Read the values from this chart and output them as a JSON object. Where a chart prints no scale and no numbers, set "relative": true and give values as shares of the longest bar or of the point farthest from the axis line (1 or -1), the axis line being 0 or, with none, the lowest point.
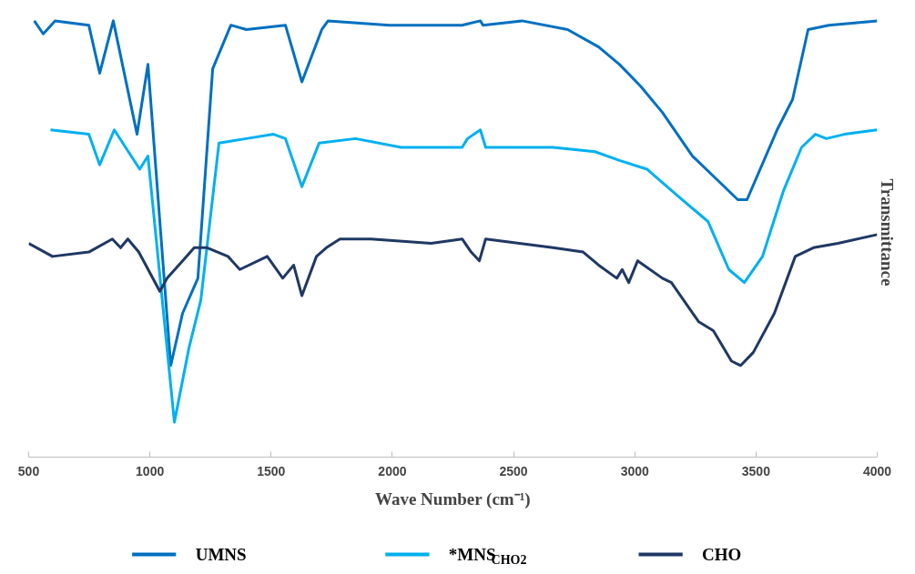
{
  "chart_data": {
    "type": "line",
    "relative": true,
    "xlabel": "Wave Number (cm⁻¹)",
    "ylabel": "Transmittance",
    "xlim": [
      500,
      4000
    ],
    "xticks": [
      500,
      1000,
      1500,
      2000,
      2500,
      3000,
      3500,
      4000
    ],
    "grid": false,
    "legend": "bottom",
    "marker": "none",
    "line_style": "solid",
    "series": [
      {
        "name": "UMNS",
        "color": "#0070c0",
        "x": [
          523,
          560,
          609,
          748,
          793,
          849,
          947,
          992,
          1086,
          1135,
          1198,
          1259,
          1334,
          1398,
          1559,
          1627,
          1709,
          1735,
          1987,
          2288,
          2363,
          2374,
          2535,
          2723,
          2851,
          2937,
          3024,
          3114,
          3238,
          3313,
          3425,
          3463,
          3587,
          3651,
          3715,
          3801,
          4000
        ],
        "values": [
          1.0,
          0.97,
          1.0,
          0.99,
          0.88,
          1.0,
          0.74,
          0.9,
          0.21,
          0.33,
          0.41,
          0.89,
          0.99,
          0.98,
          0.99,
          0.86,
          0.98,
          1.0,
          0.99,
          0.99,
          1.0,
          0.99,
          1.0,
          0.98,
          0.94,
          0.9,
          0.85,
          0.79,
          0.69,
          0.65,
          0.59,
          0.59,
          0.75,
          0.82,
          0.98,
          0.99,
          1.0
        ]
      },
      {
        "name": "*MNS$_{CHO2}$",
        "color": "#00b0f0",
        "x": [
          590,
          748,
          793,
          853,
          958,
          992,
          1101,
          1161,
          1210,
          1285,
          1398,
          1510,
          1559,
          1627,
          1698,
          1848,
          2036,
          2288,
          2310,
          2363,
          2385,
          2663,
          2836,
          2937,
          3050,
          3174,
          3302,
          3388,
          3452,
          3527,
          3613,
          3688,
          3745,
          3790,
          3865,
          4000
        ],
        "values": [
          0.75,
          0.74,
          0.67,
          0.75,
          0.66,
          0.69,
          0.08,
          0.25,
          0.36,
          0.72,
          0.73,
          0.74,
          0.73,
          0.62,
          0.72,
          0.73,
          0.71,
          0.71,
          0.73,
          0.75,
          0.71,
          0.71,
          0.7,
          0.68,
          0.66,
          0.6,
          0.54,
          0.43,
          0.4,
          0.46,
          0.61,
          0.71,
          0.74,
          0.73,
          0.74,
          0.75
        ]
      },
      {
        "name": "CHO",
        "color": "#1f3864",
        "x": [
          500,
          598,
          748,
          845,
          879,
          909,
          954,
          1041,
          1071,
          1135,
          1183,
          1236,
          1322,
          1371,
          1484,
          1548,
          1593,
          1627,
          1687,
          1728,
          1784,
          1912,
          2160,
          2288,
          2325,
          2359,
          2385,
          2663,
          2787,
          2851,
          2926,
          2948,
          2975,
          3012,
          3114,
          3151,
          3264,
          3324,
          3399,
          3437,
          3489,
          3576,
          3662,
          3737,
          3838,
          4000
        ],
        "values": [
          0.49,
          0.46,
          0.47,
          0.5,
          0.48,
          0.5,
          0.47,
          0.38,
          0.41,
          0.45,
          0.48,
          0.48,
          0.46,
          0.43,
          0.46,
          0.41,
          0.44,
          0.37,
          0.46,
          0.48,
          0.5,
          0.5,
          0.49,
          0.5,
          0.47,
          0.45,
          0.5,
          0.48,
          0.47,
          0.44,
          0.41,
          0.43,
          0.4,
          0.45,
          0.41,
          0.4,
          0.31,
          0.29,
          0.22,
          0.21,
          0.24,
          0.33,
          0.46,
          0.48,
          0.49,
          0.51
        ]
      }
    ]
  }
}
